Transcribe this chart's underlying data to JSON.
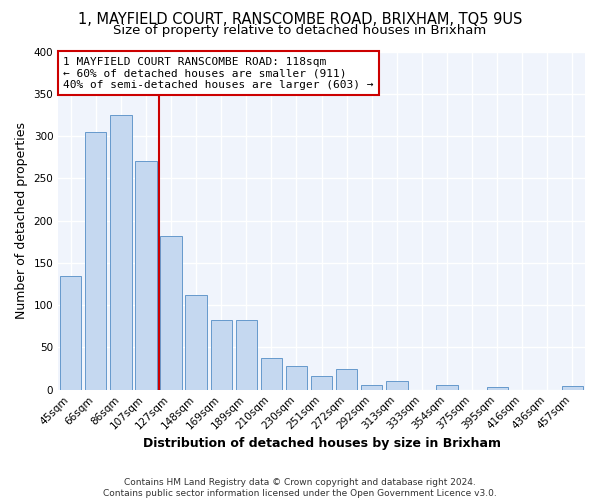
{
  "title": "1, MAYFIELD COURT, RANSCOMBE ROAD, BRIXHAM, TQ5 9US",
  "subtitle": "Size of property relative to detached houses in Brixham",
  "xlabel": "Distribution of detached houses by size in Brixham",
  "ylabel": "Number of detached properties",
  "bar_labels": [
    "45sqm",
    "66sqm",
    "86sqm",
    "107sqm",
    "127sqm",
    "148sqm",
    "169sqm",
    "189sqm",
    "210sqm",
    "230sqm",
    "251sqm",
    "272sqm",
    "292sqm",
    "313sqm",
    "333sqm",
    "354sqm",
    "375sqm",
    "395sqm",
    "416sqm",
    "436sqm",
    "457sqm"
  ],
  "bar_values": [
    135,
    305,
    325,
    270,
    182,
    112,
    83,
    83,
    38,
    28,
    16,
    25,
    5,
    10,
    0,
    6,
    0,
    3,
    0,
    0,
    4
  ],
  "bar_color": "#c5d8f0",
  "bar_edge_color": "#6699cc",
  "vline_x": 3.5,
  "vline_color": "#cc0000",
  "annotation_line1": "1 MAYFIELD COURT RANSCOMBE ROAD: 118sqm",
  "annotation_line2": "← 60% of detached houses are smaller (911)",
  "annotation_line3": "40% of semi-detached houses are larger (603) →",
  "annotation_box_edgecolor": "#cc0000",
  "annotation_box_facecolor": "#ffffff",
  "ylim": [
    0,
    400
  ],
  "yticks": [
    0,
    50,
    100,
    150,
    200,
    250,
    300,
    350,
    400
  ],
  "footer": "Contains HM Land Registry data © Crown copyright and database right 2024.\nContains public sector information licensed under the Open Government Licence v3.0.",
  "bg_color": "#ffffff",
  "plot_bg_color": "#f0f4fc",
  "grid_color": "#ffffff",
  "title_fontsize": 10.5,
  "subtitle_fontsize": 9.5,
  "axis_label_fontsize": 9,
  "tick_fontsize": 7.5,
  "annotation_fontsize": 8,
  "footer_fontsize": 6.5
}
